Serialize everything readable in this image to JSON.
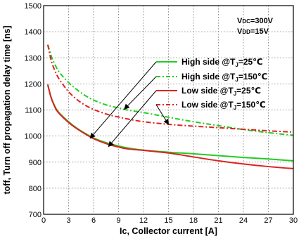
{
  "chart_data": {
    "type": "line",
    "xlabel": "Ic, Collector current [A]",
    "ylabel": "toff, Turn off propagation delay time [ns]",
    "xlim": [
      0,
      30
    ],
    "ylim": [
      700,
      1500
    ],
    "xticks": [
      0,
      3,
      6,
      9,
      12,
      15,
      18,
      21,
      24,
      27,
      30
    ],
    "yticks": [
      700,
      800,
      900,
      1000,
      1100,
      1200,
      1300,
      1400,
      1500
    ],
    "grid": true,
    "legend_position": "right",
    "conditions": [
      "VDC=300V",
      "VDD=15V"
    ],
    "series": [
      {
        "name": "High side @TJ=25℃",
        "color": "#22cc22",
        "style": "solid",
        "x": [
          0.5,
          0.8,
          1,
          1.5,
          2,
          3,
          4,
          5,
          6,
          7,
          8,
          9,
          10,
          12,
          15,
          18,
          21,
          24,
          27,
          30
        ],
        "y": [
          1195,
          1160,
          1140,
          1105,
          1085,
          1055,
          1030,
          1010,
          993,
          980,
          970,
          962,
          955,
          946,
          938,
          932,
          925,
          918,
          912,
          905
        ]
      },
      {
        "name": "High side @TJ=150℃",
        "color": "#22cc22",
        "style": "dashdot",
        "x": [
          0.5,
          0.8,
          1,
          1.5,
          2,
          3,
          4,
          5,
          6,
          7,
          8,
          9,
          10,
          12,
          15,
          18,
          21,
          24,
          27,
          30
        ],
        "y": [
          1350,
          1320,
          1300,
          1265,
          1240,
          1205,
          1178,
          1155,
          1138,
          1125,
          1115,
          1108,
          1100,
          1090,
          1072,
          1055,
          1040,
          1025,
          1013,
          1003
        ]
      },
      {
        "name": "Low side @TJ=25℃",
        "color": "#dd2222",
        "style": "solid",
        "x": [
          0.5,
          0.8,
          1,
          1.5,
          2,
          3,
          4,
          5,
          6,
          7,
          8,
          9,
          10,
          12,
          15,
          18,
          21,
          24,
          27,
          30
        ],
        "y": [
          1198,
          1158,
          1138,
          1102,
          1082,
          1052,
          1028,
          1008,
          990,
          977,
          966,
          958,
          951,
          945,
          935,
          920,
          905,
          893,
          883,
          875
        ]
      },
      {
        "name": "Low side @TJ=150℃",
        "color": "#dd2222",
        "style": "dashdot",
        "x": [
          0.5,
          0.8,
          1,
          1.5,
          2,
          3,
          4,
          5,
          6,
          7,
          8,
          9,
          10,
          12,
          15,
          18,
          21,
          24,
          27,
          30
        ],
        "y": [
          1350,
          1305,
          1280,
          1240,
          1212,
          1170,
          1140,
          1118,
          1102,
          1090,
          1080,
          1073,
          1066,
          1055,
          1045,
          1038,
          1032,
          1026,
          1020,
          1015
        ]
      }
    ]
  }
}
